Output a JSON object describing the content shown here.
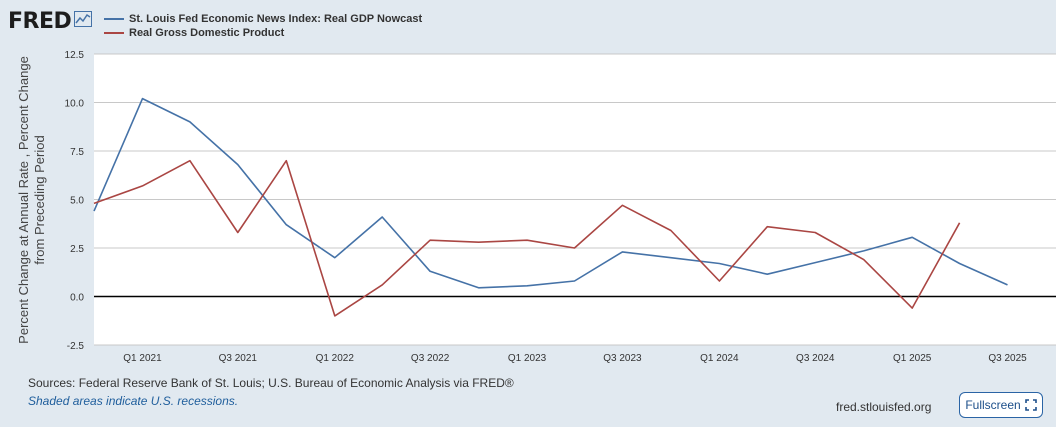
{
  "header": {
    "logo_text": "FRED",
    "logo_icon": "line-chart-icon"
  },
  "colors": {
    "nowcast": "#4572a7",
    "gdp": "#aa4643",
    "background": "#e1e9f0",
    "plot_bg": "#ffffff",
    "grid": "#c8c8c8",
    "zero_line": "#000000"
  },
  "chart_data": {
    "type": "line",
    "ylabel": "Percent Change at Annual Rate , Percent Change from Preceding Period",
    "ylabel_lines": [
      "Percent Change at Annual Rate , Percent Change",
      "from Preceding Period"
    ],
    "ylim": [
      -2.5,
      12.5
    ],
    "yticks": [
      12.5,
      10.0,
      7.5,
      5.0,
      2.5,
      0.0,
      -2.5
    ],
    "ytick_labels": [
      "12.5",
      "10.0",
      "7.5",
      "5.0",
      "2.5",
      "0.0",
      "-2.5"
    ],
    "xlim": [
      "2020-10-01",
      "2025-10-01"
    ],
    "xticks": [
      "2021-01-01",
      "2021-07-01",
      "2022-01-01",
      "2022-07-01",
      "2023-01-01",
      "2023-07-01",
      "2024-01-01",
      "2024-07-01",
      "2025-01-01",
      "2025-07-01"
    ],
    "xtick_labels": [
      "Q1 2021",
      "Q3 2021",
      "Q1 2022",
      "Q3 2022",
      "Q1 2023",
      "Q3 2023",
      "Q1 2024",
      "Q3 2024",
      "Q1 2025",
      "Q3 2025"
    ],
    "grid": true,
    "legend_placement": "top-left",
    "series": [
      {
        "name": "St. Louis Fed Economic News Index: Real GDP Nowcast",
        "color": "#4572a7",
        "x": [
          "2020-10-01",
          "2021-01-01",
          "2021-04-01",
          "2021-07-01",
          "2021-10-01",
          "2022-01-01",
          "2022-04-01",
          "2022-07-01",
          "2022-10-01",
          "2023-01-01",
          "2023-04-01",
          "2023-07-01",
          "2023-10-01",
          "2024-01-01",
          "2024-04-01",
          "2024-07-01",
          "2024-10-01",
          "2025-01-01",
          "2025-04-01",
          "2025-07-01"
        ],
        "y": [
          4.4,
          10.2,
          9.0,
          6.8,
          3.7,
          2.0,
          4.1,
          1.3,
          0.45,
          0.55,
          0.8,
          2.3,
          2.0,
          1.7,
          1.15,
          1.75,
          2.35,
          3.05,
          1.7,
          0.6
        ]
      },
      {
        "name": "Real Gross Domestic Product",
        "color": "#aa4643",
        "x": [
          "2020-10-01",
          "2021-01-01",
          "2021-04-01",
          "2021-07-01",
          "2021-10-01",
          "2022-01-01",
          "2022-04-01",
          "2022-07-01",
          "2022-10-01",
          "2023-01-01",
          "2023-04-01",
          "2023-07-01",
          "2023-10-01",
          "2024-01-01",
          "2024-04-01",
          "2024-07-01",
          "2024-10-01",
          "2025-01-01",
          "2025-04-01"
        ],
        "y": [
          4.8,
          5.7,
          7.0,
          3.3,
          7.0,
          -1.0,
          0.6,
          2.9,
          2.8,
          2.9,
          2.5,
          4.7,
          3.4,
          0.8,
          3.6,
          3.3,
          1.9,
          -0.6,
          3.8
        ]
      }
    ]
  },
  "footer": {
    "sources": "Sources: Federal Reserve Bank of St. Louis; U.S. Bureau of Economic Analysis via FRED®",
    "shaded_note": "Shaded areas indicate U.S. recessions.",
    "site": "fred.stlouisfed.org",
    "fullscreen_label": "Fullscreen",
    "fullscreen_icon": "expand-icon"
  }
}
